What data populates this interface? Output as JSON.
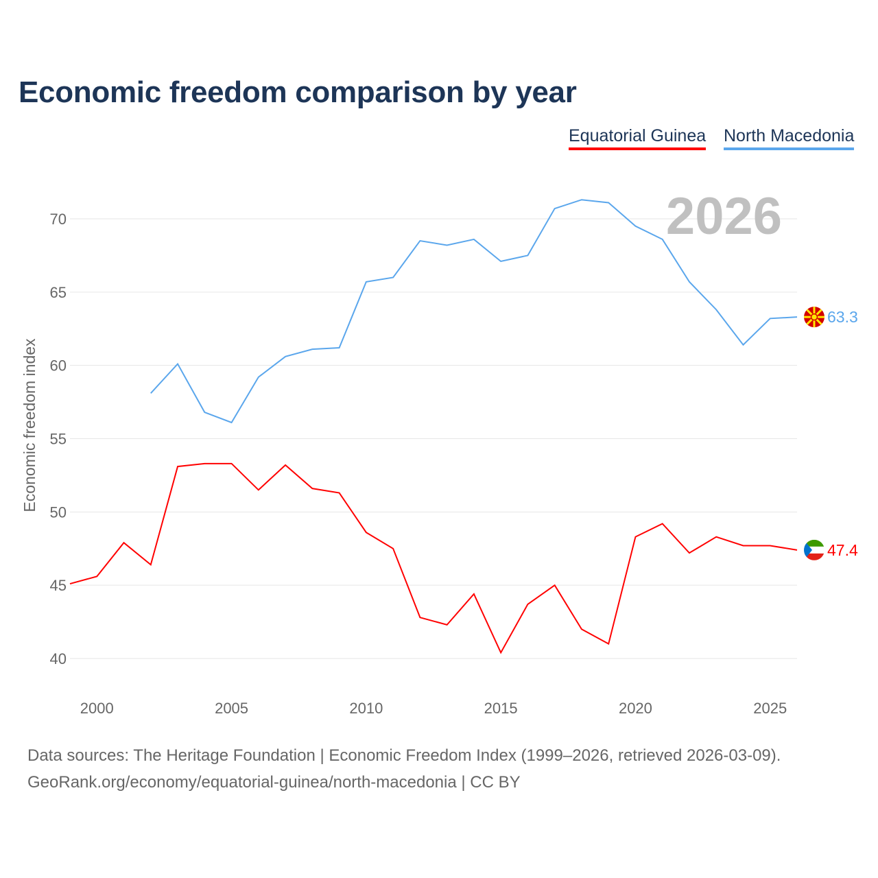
{
  "chart_data": {
    "type": "line",
    "title": "Economic freedom comparison by year",
    "xlabel": "",
    "ylabel": "Economic freedom index",
    "xlim": [
      1999,
      2026
    ],
    "ylim": [
      38,
      72.5
    ],
    "x_ticks": [
      2000,
      2005,
      2010,
      2015,
      2020,
      2025
    ],
    "y_ticks": [
      40,
      45,
      50,
      55,
      60,
      65,
      70
    ],
    "grid": true,
    "legend_position": "top-right",
    "year_label": "2026",
    "series": [
      {
        "name": "Equatorial Guinea",
        "color": "#ff0000",
        "end_label": "47.4",
        "x": [
          1999,
          2000,
          2001,
          2002,
          2003,
          2004,
          2005,
          2006,
          2007,
          2008,
          2009,
          2010,
          2011,
          2012,
          2013,
          2014,
          2015,
          2016,
          2017,
          2018,
          2019,
          2020,
          2021,
          2022,
          2023,
          2024,
          2025,
          2026
        ],
        "values": [
          45.1,
          45.6,
          47.9,
          46.4,
          53.1,
          53.3,
          53.3,
          51.5,
          53.2,
          51.6,
          51.3,
          48.6,
          47.5,
          42.8,
          42.3,
          44.4,
          40.4,
          43.7,
          45.0,
          42.0,
          41.0,
          48.3,
          49.2,
          47.2,
          48.3,
          47.7,
          47.7,
          47.4
        ]
      },
      {
        "name": "North Macedonia",
        "color": "#5aa6ec",
        "end_label": "63.3",
        "x": [
          2002,
          2003,
          2004,
          2005,
          2006,
          2007,
          2008,
          2009,
          2010,
          2011,
          2012,
          2013,
          2014,
          2015,
          2016,
          2017,
          2018,
          2019,
          2020,
          2021,
          2022,
          2023,
          2024,
          2025,
          2026
        ],
        "values": [
          58.1,
          60.1,
          56.8,
          56.1,
          59.2,
          60.6,
          61.1,
          61.2,
          65.7,
          66.0,
          68.5,
          68.2,
          68.6,
          67.1,
          67.5,
          70.7,
          71.3,
          71.1,
          69.5,
          68.6,
          65.7,
          63.8,
          61.4,
          63.2,
          63.3
        ]
      }
    ]
  },
  "footer": {
    "sources": "Data sources: The Heritage Foundation | Economic Freedom Index (1999–2026, retrieved 2026-03-09).",
    "credit": "GeoRank.org/economy/equatorial-guinea/north-macedonia | CC BY"
  }
}
